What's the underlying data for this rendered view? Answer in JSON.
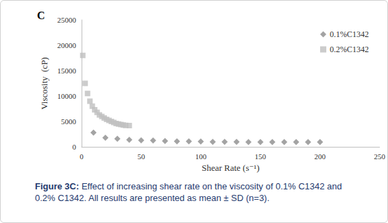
{
  "chart_data": {
    "type": "scatter",
    "title": "C",
    "caption": "Figure 3C: Effect of increasing shear rate on the viscosity of 0.1% C1342 and 0.2% C1342.  All results are presented as mean ± SD (n=3).",
    "x_label": "Shear Rate (s⁻¹)",
    "y_label": "Viscosity  (cP)",
    "xlim": [
      0,
      250
    ],
    "xticks": [
      0,
      50,
      100,
      150,
      200,
      250
    ],
    "ylim": [
      0,
      25000
    ],
    "yticks": [
      0,
      5000,
      10000,
      15000,
      20000,
      25000
    ],
    "grid": false,
    "legend": "upper right",
    "series": [
      {
        "name": "0.1%C1342",
        "color": "#8c8c8c",
        "marker": "diamond",
        "x": [
          10,
          20,
          30,
          40,
          50,
          60,
          70,
          80,
          90,
          100,
          110,
          120,
          130,
          140,
          150,
          160,
          170,
          180,
          190,
          200
        ],
        "values": [
          2800,
          1800,
          1600,
          1400,
          1300,
          1250,
          1150,
          1100,
          1100,
          1050,
          1000,
          1000,
          1000,
          950,
          950,
          950,
          950,
          950,
          950,
          950
        ]
      },
      {
        "name": "0.2%C1342",
        "color": "#bfbfbf",
        "marker": "square",
        "x": [
          1,
          3,
          5,
          7,
          9,
          11,
          13,
          15,
          17,
          19,
          21,
          23,
          25,
          27,
          29,
          31,
          33,
          35,
          37,
          40
        ],
        "values": [
          18000,
          12500,
          10500,
          9000,
          8000,
          7300,
          6800,
          6300,
          6000,
          5700,
          5400,
          5200,
          5000,
          4800,
          4600,
          4500,
          4400,
          4300,
          4250,
          4200
        ]
      }
    ]
  }
}
